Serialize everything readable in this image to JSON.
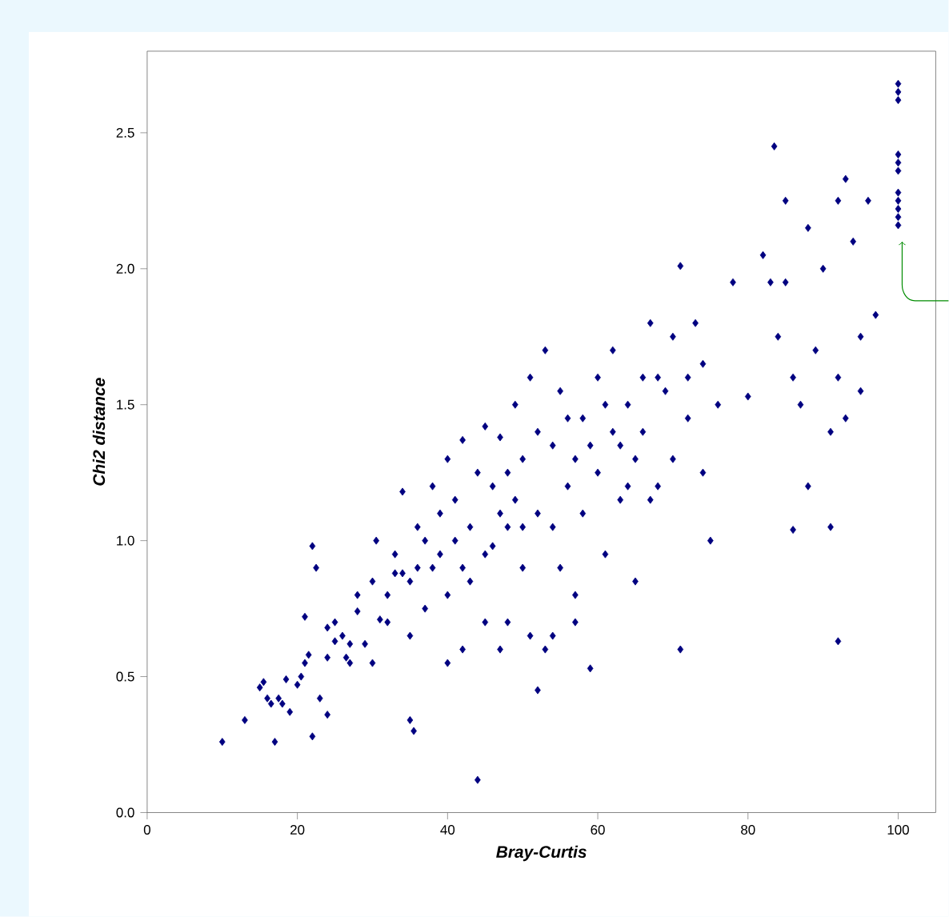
{
  "chart_data": {
    "type": "scatter",
    "xlabel": "Bray-Curtis",
    "ylabel": "Chi2 distance",
    "xlim": [
      0,
      105
    ],
    "ylim": [
      0,
      2.8
    ],
    "xticks": [
      0,
      20,
      40,
      60,
      80,
      100
    ],
    "yticks": [
      {
        "value": 0,
        "label": "0.0"
      },
      {
        "value": 0.5,
        "label": "0.5"
      },
      {
        "value": 1,
        "label": "1.0"
      },
      {
        "value": 1.5,
        "label": "1.5"
      },
      {
        "value": 2,
        "label": "2.0"
      },
      {
        "value": 2.5,
        "label": "2.5"
      }
    ],
    "marker": "diamond",
    "grid": false,
    "series": [
      {
        "color": "#000080",
        "x": [
          10,
          13,
          15,
          15.5,
          16,
          16.5,
          17,
          17.5,
          18,
          18.5,
          19,
          20,
          20.5,
          21,
          21,
          21.5,
          22,
          22,
          22.5,
          23,
          24,
          24,
          24,
          25,
          26,
          26.5,
          27,
          28,
          28,
          29,
          30,
          30,
          30.5,
          31,
          32,
          32,
          33,
          34,
          34,
          35,
          35,
          35.5,
          36,
          37,
          38,
          39,
          40,
          40,
          41,
          42,
          43,
          44,
          45,
          45,
          46,
          47,
          48,
          48,
          49,
          50,
          50,
          51,
          51,
          52,
          52,
          53,
          53,
          54,
          55,
          55,
          56,
          57,
          58,
          58,
          59,
          60,
          60,
          61,
          62,
          62,
          63,
          64,
          65,
          65,
          66,
          67,
          68,
          69,
          70,
          71,
          71,
          72,
          73,
          74,
          75,
          76,
          78,
          80,
          82,
          83,
          83.5,
          84,
          85,
          85,
          86,
          86,
          87,
          88,
          88,
          89,
          90,
          91,
          91,
          92,
          92,
          92,
          93,
          93,
          94,
          95,
          95,
          96,
          97,
          100,
          100,
          100,
          100,
          100,
          100,
          100,
          100,
          100,
          100,
          100,
          25,
          27,
          33,
          36,
          37,
          38,
          39,
          41,
          42,
          43,
          44,
          46,
          47,
          48,
          49,
          50,
          52,
          54,
          56,
          57,
          59,
          61,
          63,
          64,
          66,
          67,
          68,
          70,
          72,
          74,
          35,
          40,
          42,
          45,
          47,
          54,
          57
        ],
        "values": [
          0.26,
          0.34,
          0.46,
          0.48,
          0.42,
          0.4,
          0.26,
          0.42,
          0.4,
          0.49,
          0.37,
          0.47,
          0.5,
          0.72,
          0.55,
          0.58,
          0.28,
          0.98,
          0.9,
          0.42,
          0.36,
          0.57,
          0.68,
          0.63,
          0.65,
          0.57,
          0.55,
          0.74,
          0.8,
          0.62,
          0.55,
          0.85,
          1.0,
          0.71,
          0.7,
          0.8,
          0.95,
          1.18,
          0.88,
          0.34,
          0.85,
          0.3,
          1.05,
          0.75,
          0.9,
          1.1,
          1.3,
          0.8,
          1.0,
          1.37,
          0.85,
          0.12,
          1.42,
          0.95,
          1.2,
          1.1,
          0.7,
          1.25,
          1.5,
          1.3,
          0.9,
          1.6,
          0.65,
          0.45,
          1.1,
          1.7,
          0.6,
          1.35,
          0.9,
          1.55,
          1.2,
          0.8,
          1.45,
          1.1,
          0.53,
          1.6,
          1.25,
          0.95,
          1.4,
          1.7,
          1.15,
          1.5,
          1.3,
          0.85,
          1.6,
          1.8,
          1.2,
          1.55,
          1.75,
          0.6,
          2.01,
          1.45,
          1.8,
          1.65,
          1.0,
          1.5,
          1.95,
          1.53,
          2.05,
          1.95,
          2.45,
          1.75,
          1.95,
          2.25,
          1.04,
          1.6,
          1.5,
          1.2,
          2.15,
          1.7,
          2.0,
          1.05,
          1.4,
          0.63,
          1.6,
          2.25,
          2.33,
          1.45,
          2.1,
          1.55,
          1.75,
          2.25,
          1.83,
          2.68,
          2.65,
          2.62,
          2.42,
          2.39,
          2.36,
          2.28,
          2.25,
          2.22,
          2.19,
          2.16,
          0.7,
          0.62,
          0.88,
          0.9,
          1.0,
          1.2,
          0.95,
          1.15,
          0.9,
          1.05,
          1.25,
          0.98,
          1.38,
          1.05,
          1.15,
          1.05,
          1.4,
          1.05,
          1.45,
          1.3,
          1.35,
          1.5,
          1.35,
          1.2,
          1.4,
          1.15,
          1.6,
          1.3,
          1.6,
          1.25,
          0.65,
          0.55,
          0.6,
          0.7,
          0.6,
          0.65,
          0.7
        ]
      }
    ]
  }
}
